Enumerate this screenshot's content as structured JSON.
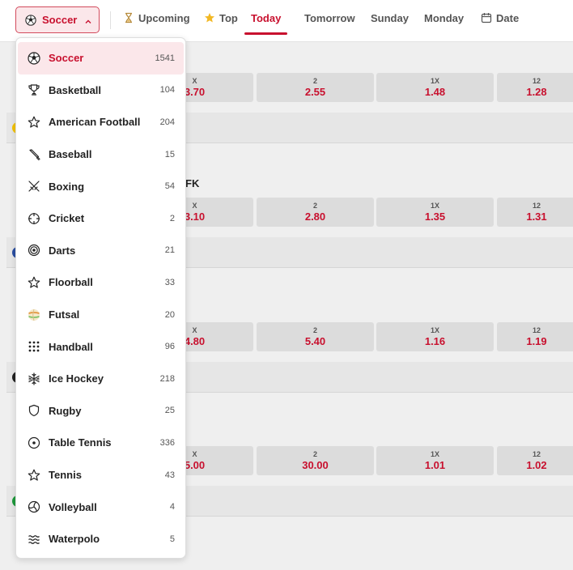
{
  "sport_button": {
    "label": "Soccer",
    "icon": "soccer-ball-icon"
  },
  "nav_tabs": [
    {
      "label": "Upcoming",
      "icon": "hourglass-icon"
    },
    {
      "label": "Top",
      "icon": "star-icon"
    },
    {
      "label": "Today"
    },
    {
      "label": "Tomorrow"
    },
    {
      "label": "Sunday"
    },
    {
      "label": "Monday"
    },
    {
      "label": "Date",
      "icon": "calendar-icon"
    }
  ],
  "active_tab": "Today",
  "sports": [
    {
      "name": "Soccer",
      "count": "1541",
      "icon": "soccer-ball-icon"
    },
    {
      "name": "Basketball",
      "count": "104",
      "icon": "trophy-icon"
    },
    {
      "name": "American Football",
      "count": "204",
      "icon": "star-outline-icon"
    },
    {
      "name": "Baseball",
      "count": "15",
      "icon": "baseball-bat-icon"
    },
    {
      "name": "Boxing",
      "count": "54",
      "icon": "crossed-swords-icon"
    },
    {
      "name": "Cricket",
      "count": "2",
      "icon": "crosshair-icon"
    },
    {
      "name": "Darts",
      "count": "21",
      "icon": "target-icon"
    },
    {
      "name": "Floorball",
      "count": "33",
      "icon": "star-outline-icon"
    },
    {
      "name": "Futsal",
      "count": "20",
      "icon": "futsal-ball-icon"
    },
    {
      "name": "Handball",
      "count": "96",
      "icon": "dot-grid-icon"
    },
    {
      "name": "Ice Hockey",
      "count": "218",
      "icon": "snowflake-icon"
    },
    {
      "name": "Rugby",
      "count": "25",
      "icon": "shield-icon"
    },
    {
      "name": "Table Tennis",
      "count": "336",
      "icon": "circle-dot-icon"
    },
    {
      "name": "Tennis",
      "count": "43",
      "icon": "star-outline-icon"
    },
    {
      "name": "Volleyball",
      "count": "4",
      "icon": "volleyball-icon"
    },
    {
      "name": "Waterpolo",
      "count": "5",
      "icon": "waves-icon"
    }
  ],
  "matches": [
    {
      "odds": [
        {
          "k": "X",
          "v": "3.70"
        },
        {
          "k": "2",
          "v": "2.55"
        },
        {
          "k": "1X",
          "v": "1.48"
        },
        {
          "k": "12",
          "v": "1.28"
        }
      ]
    },
    {
      "team_fragment": "FK",
      "odds": [
        {
          "k": "X",
          "v": "3.10"
        },
        {
          "k": "2",
          "v": "2.80"
        },
        {
          "k": "1X",
          "v": "1.35"
        },
        {
          "k": "12",
          "v": "1.31"
        }
      ]
    },
    {
      "odds": [
        {
          "k": "X",
          "v": "4.80"
        },
        {
          "k": "2",
          "v": "5.40"
        },
        {
          "k": "1X",
          "v": "1.16"
        },
        {
          "k": "12",
          "v": "1.19"
        }
      ]
    },
    {
      "odds": [
        {
          "k": "X",
          "v": "5.00"
        },
        {
          "k": "2",
          "v": "30.00"
        },
        {
          "k": "1X",
          "v": "1.01"
        },
        {
          "k": "12",
          "v": "1.02"
        }
      ]
    }
  ],
  "colors": {
    "accent": "#c8102e",
    "accent_bg": "#fbe7ea"
  }
}
